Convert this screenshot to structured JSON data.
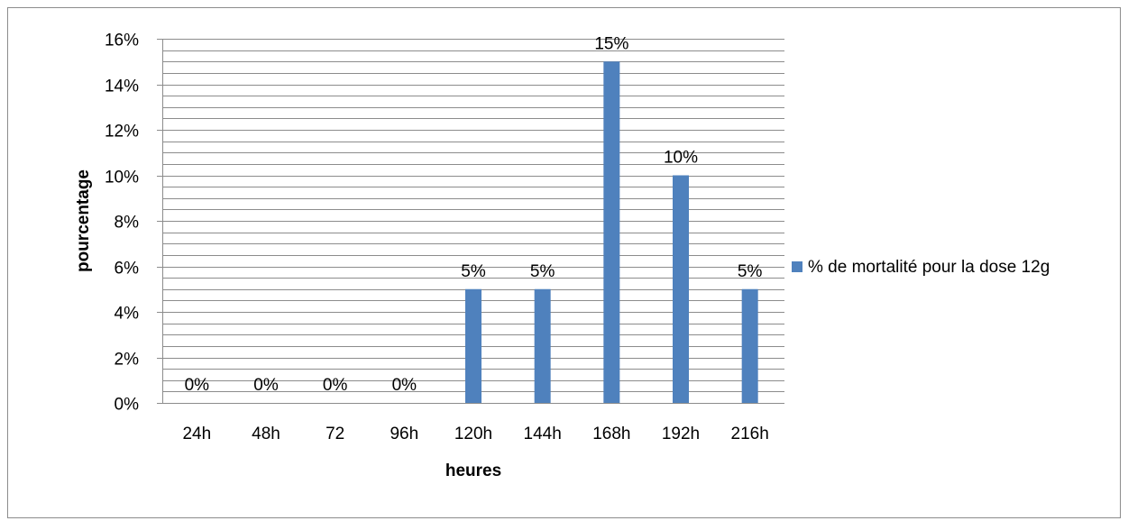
{
  "chart_data": {
    "type": "bar",
    "title": "",
    "xlabel": "heures",
    "ylabel": "pourcentage",
    "categories": [
      "24h",
      "48h",
      "72",
      "96h",
      "120h",
      "144h",
      "168h",
      "192h",
      "216h"
    ],
    "series": [
      {
        "name": "% de mortalité pour la dose 12g",
        "values": [
          0,
          0,
          0,
          0,
          5,
          5,
          15,
          10,
          5
        ],
        "labels": [
          "0%",
          "0%",
          "0%",
          "0%",
          "5%",
          "5%",
          "15%",
          "10%",
          "5%"
        ],
        "color": "#4f81bd"
      }
    ],
    "ylim": [
      0,
      16
    ],
    "yticks": [
      {
        "value": 0,
        "label": "0%"
      },
      {
        "value": 2,
        "label": "2%"
      },
      {
        "value": 4,
        "label": "4%"
      },
      {
        "value": 6,
        "label": "6%"
      },
      {
        "value": 8,
        "label": "8%"
      },
      {
        "value": 10,
        "label": "10%"
      },
      {
        "value": 12,
        "label": "12%"
      },
      {
        "value": 14,
        "label": "14%"
      },
      {
        "value": 16,
        "label": "16%"
      }
    ],
    "minor_grid_step": 0.5,
    "grid": true,
    "legend_position": "right"
  }
}
